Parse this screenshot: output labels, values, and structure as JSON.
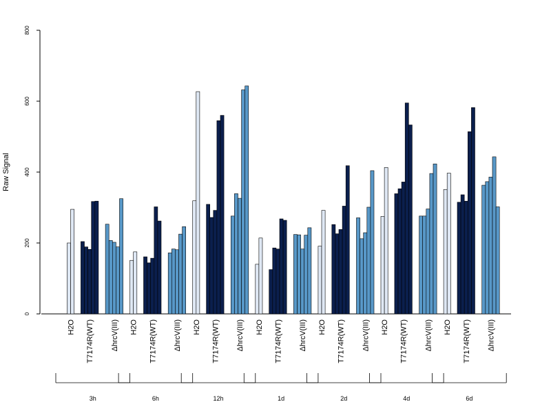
{
  "chart_data": {
    "type": "bar",
    "ylabel": "Raw Signal",
    "ylim": [
      0,
      800
    ],
    "yticks": [
      0,
      200,
      400,
      600,
      800
    ],
    "conditions": [
      "H2O",
      "T7174R(WT)",
      "ΔhrcV(III)"
    ],
    "colors": {
      "H2O": "#dfe8f4",
      "T7174R(WT)": "#0b1f4d",
      "ΔhrcV(III)": "#5898c8"
    },
    "groups": [
      {
        "time": "3h",
        "values": {
          "H2O": [
            200,
            295
          ],
          "T7174R(WT)": [
            204,
            189,
            182,
            317,
            318
          ],
          "ΔhrcV(III)": [
            253,
            207,
            202,
            189,
            325
          ]
        }
      },
      {
        "time": "6h",
        "values": {
          "H2O": [
            151,
            175
          ],
          "T7174R(WT)": [
            161,
            144,
            157,
            302,
            262
          ],
          "ΔhrcV(III)": [
            172,
            183,
            181,
            225,
            246
          ]
        }
      },
      {
        "time": "12h",
        "values": {
          "H2O": [
            319,
            627
          ],
          "T7174R(WT)": [
            309,
            272,
            292,
            545,
            560
          ],
          "ΔhrcV(III)": [
            276,
            339,
            326,
            632,
            643
          ]
        }
      },
      {
        "time": "1d",
        "values": {
          "H2O": [
            140,
            214
          ],
          "T7174R(WT)": [
            125,
            186,
            183,
            268,
            264
          ],
          "ΔhrcV(III)": [
            224,
            223,
            183,
            222,
            243
          ]
        }
      },
      {
        "time": "2d",
        "values": {
          "H2O": [
            191,
            292
          ],
          "T7174R(WT)": [
            252,
            226,
            238,
            304,
            418
          ],
          "ΔhrcV(III)": [
            271,
            212,
            229,
            301,
            404
          ]
        }
      },
      {
        "time": "4d",
        "values": {
          "H2O": [
            275,
            413
          ],
          "T7174R(WT)": [
            339,
            353,
            372,
            595,
            533
          ],
          "ΔhrcV(III)": [
            276,
            276,
            296,
            396,
            423
          ]
        }
      },
      {
        "time": "6d",
        "values": {
          "H2O": [
            351,
            397
          ],
          "T7174R(WT)": [
            315,
            336,
            318,
            514,
            582
          ],
          "ΔhrcV(III)": [
            363,
            373,
            386,
            443,
            302
          ]
        }
      }
    ]
  }
}
